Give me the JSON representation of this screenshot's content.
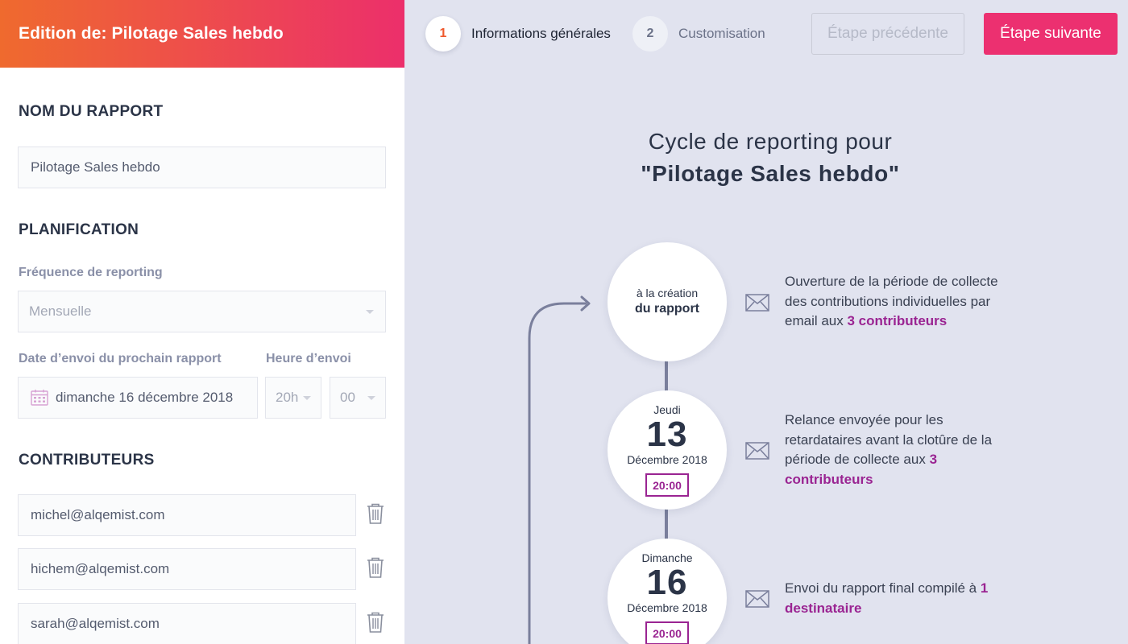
{
  "header": {
    "title": "Edition de: Pilotage Sales hebdo",
    "steps": [
      {
        "number": "1",
        "label": "Informations générales"
      },
      {
        "number": "2",
        "label": "Customisation"
      }
    ],
    "prev_label": "Étape précédente",
    "next_label": "Étape suivante"
  },
  "form": {
    "report_name_title": "NOM DU RAPPORT",
    "report_name_value": "Pilotage Sales hebdo",
    "planning_title": "PLANIFICATION",
    "frequency_label": "Fréquence de reporting",
    "frequency_value": "Mensuelle",
    "date_label": "Date d’envoi du prochain rapport",
    "date_value": "dimanche 16 décembre 2018",
    "time_label": "Heure d’envoi",
    "hour_value": "20h",
    "minute_value": "00",
    "contributors_title": "CONTRIBUTEURS",
    "contributors": [
      "michel@alqemist.com",
      "hichem@alqemist.com",
      "sarah@alqemist.com"
    ]
  },
  "cycle": {
    "heading_line1": "Cycle de reporting pour",
    "heading_line2": "\"Pilotage Sales hebdo\"",
    "steps": [
      {
        "line1": "à la création",
        "line2": "du rapport",
        "text": "Ouverture de la période de collecte des contributions individuelles par email aux ",
        "highlight": "3 contributeurs"
      },
      {
        "day": "Jeudi",
        "date": "13",
        "month": "Décembre 2018",
        "time": "20:00",
        "text": "Relance envoyée pour les retardataires avant la clotûre de la période de collecte aux ",
        "highlight": "3 contributeurs"
      },
      {
        "day": "Dimanche",
        "date": "16",
        "month": "Décembre 2018",
        "time": "20:00",
        "text": "Envoi du rapport final compilé à ",
        "highlight": "1 destinataire"
      }
    ]
  },
  "colors": {
    "header_gradient_start": "#ef6a2e",
    "header_gradient_end": "#ec2f6b",
    "primary_button": "#ec3070",
    "highlight": "#9a2492",
    "background": "#e1e3ef"
  }
}
